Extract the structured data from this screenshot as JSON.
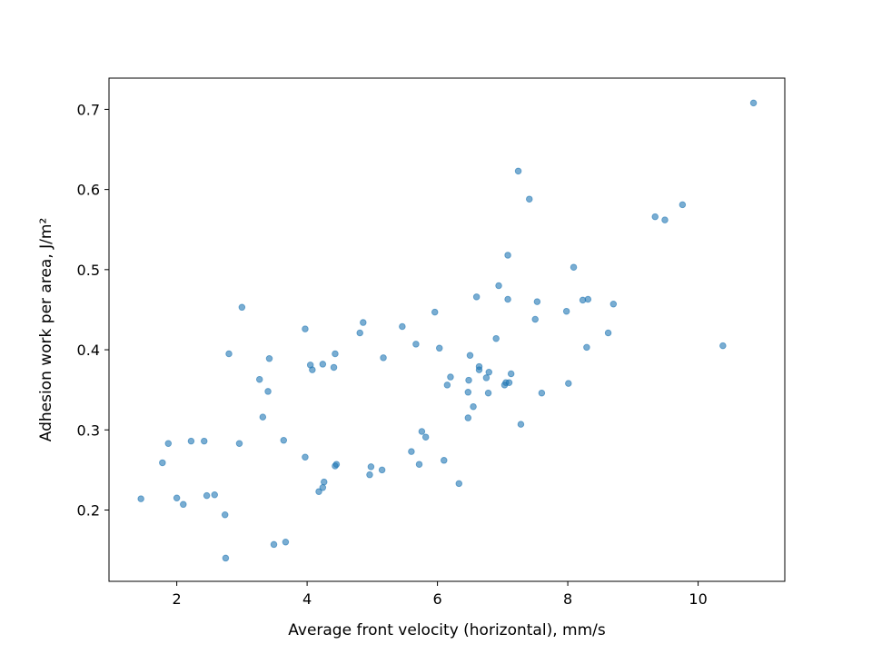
{
  "chart_data": {
    "type": "scatter",
    "title": "",
    "xlabel": "Average front velocity (horizontal), mm/s",
    "ylabel": "Adhesion work per area, J/m²",
    "xlim": [
      0.96,
      11.33
    ],
    "ylim": [
      0.111,
      0.739
    ],
    "xticks": [
      2,
      4,
      6,
      8,
      10
    ],
    "yticks": [
      0.2,
      0.3,
      0.4,
      0.5,
      0.6,
      0.7
    ],
    "xtick_labels": [
      "2",
      "4",
      "6",
      "8",
      "10"
    ],
    "ytick_labels": [
      "0.2",
      "0.3",
      "0.4",
      "0.5",
      "0.6",
      "0.7"
    ],
    "grid": false,
    "legend": "none",
    "marker_color": "#1f77b4",
    "marker_alpha": 0.6,
    "series": [
      {
        "x": [
          1.45,
          1.78,
          1.87,
          2.0,
          2.1,
          2.22,
          2.42,
          2.46,
          2.58,
          2.74,
          2.8,
          2.75,
          2.96,
          3.0,
          3.27,
          3.32,
          3.4,
          3.42,
          3.49,
          3.64,
          3.67,
          3.97,
          3.97,
          4.05,
          4.08,
          4.18,
          4.24,
          4.24,
          4.26,
          4.41,
          4.43,
          4.43,
          4.45,
          4.81,
          4.86,
          4.96,
          4.98,
          5.15,
          5.17,
          5.46,
          5.6,
          5.67,
          5.72,
          5.76,
          5.82,
          5.96,
          6.03,
          6.1,
          6.15,
          6.2,
          6.33,
          6.47,
          6.47,
          6.48,
          6.5,
          6.55,
          6.6,
          6.64,
          6.64,
          6.75,
          6.78,
          6.79,
          6.9,
          6.94,
          7.03,
          7.05,
          7.08,
          7.08,
          7.1,
          7.13,
          7.24,
          7.28,
          7.41,
          7.5,
          7.53,
          7.6,
          7.98,
          8.01,
          8.09,
          8.23,
          8.29,
          8.31,
          8.62,
          8.7,
          9.34,
          9.49,
          9.76,
          10.38,
          10.85
        ],
        "y": [
          0.214,
          0.259,
          0.283,
          0.215,
          0.207,
          0.286,
          0.286,
          0.218,
          0.219,
          0.194,
          0.395,
          0.14,
          0.283,
          0.453,
          0.363,
          0.316,
          0.348,
          0.389,
          0.157,
          0.287,
          0.16,
          0.266,
          0.426,
          0.381,
          0.375,
          0.223,
          0.228,
          0.382,
          0.235,
          0.378,
          0.255,
          0.395,
          0.257,
          0.421,
          0.434,
          0.244,
          0.254,
          0.25,
          0.39,
          0.429,
          0.273,
          0.407,
          0.257,
          0.298,
          0.291,
          0.447,
          0.402,
          0.262,
          0.356,
          0.366,
          0.233,
          0.315,
          0.347,
          0.362,
          0.393,
          0.329,
          0.466,
          0.375,
          0.379,
          0.365,
          0.346,
          0.372,
          0.414,
          0.48,
          0.356,
          0.359,
          0.463,
          0.518,
          0.359,
          0.37,
          0.623,
          0.307,
          0.588,
          0.438,
          0.46,
          0.346,
          0.448,
          0.358,
          0.503,
          0.462,
          0.403,
          0.463,
          0.421,
          0.457,
          0.566,
          0.562,
          0.581,
          0.405,
          0.708
        ]
      }
    ]
  }
}
